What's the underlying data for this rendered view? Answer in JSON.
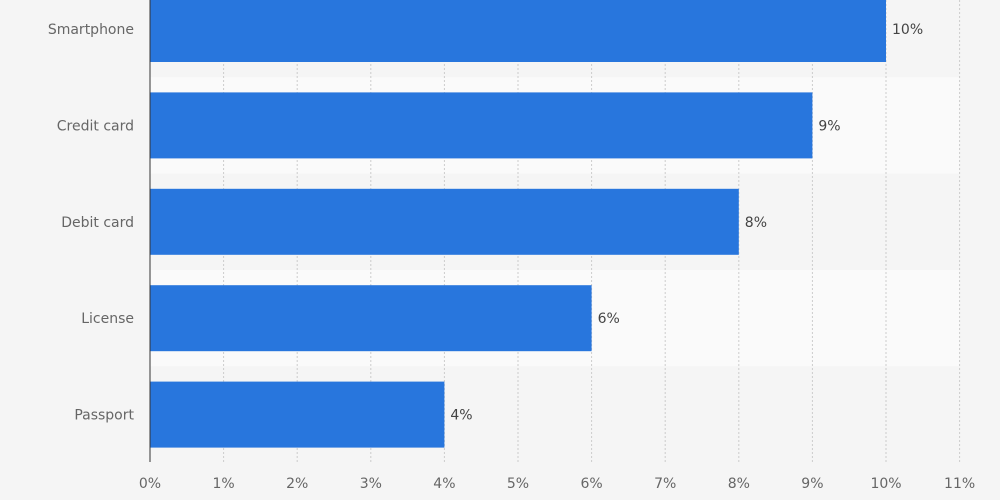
{
  "chart_data": {
    "type": "bar",
    "orientation": "horizontal",
    "categories": [
      "Smartphone",
      "Credit card",
      "Debit card",
      "License",
      "Passport"
    ],
    "values": [
      10,
      9,
      8,
      6,
      4
    ],
    "value_labels": [
      "10%",
      "9%",
      "8%",
      "6%",
      "4%"
    ],
    "xlim": [
      0,
      11
    ],
    "x_ticks": [
      0,
      1,
      2,
      3,
      4,
      5,
      6,
      7,
      8,
      9,
      10,
      11
    ],
    "x_tick_labels": [
      "0%",
      "1%",
      "2%",
      "3%",
      "4%",
      "5%",
      "6%",
      "7%",
      "8%",
      "9%",
      "10%",
      "11%"
    ],
    "title": "",
    "xlabel": "",
    "ylabel": "",
    "grid": true,
    "colors": {
      "bar": "#2876dd",
      "background": "#f5f5f5",
      "band_alt": "#fafafa",
      "grid": "#cccccc",
      "axis": "#333333"
    }
  }
}
